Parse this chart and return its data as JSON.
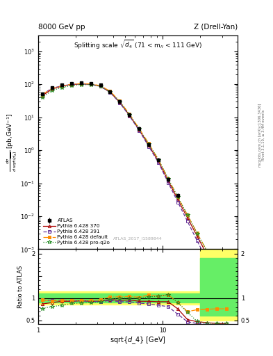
{
  "title_left": "8000 GeV pp",
  "title_right": "Z (Drell-Yan)",
  "plot_title": "Splitting scale $\\sqrt{d_4}$ (71 < m$_{ll}$ < 111 GeV)",
  "ylabel_main": "d$\\sigma$/dsqrt($d_4$) [pb,GeV$^{-1}$]",
  "ylabel_ratio": "Ratio to ATLAS",
  "xlabel": "sqrt{d_4} [GeV]",
  "watermark": "ATLAS_2017_I1589844",
  "right_label1": "Rivet 3.1.10, ≥ 3.4M events",
  "right_label2": "mcplots.cern.ch [arXiv:1306.3436]",
  "x_data": [
    1.08,
    1.29,
    1.55,
    1.85,
    2.21,
    2.64,
    3.16,
    3.78,
    4.52,
    5.41,
    6.47,
    7.74,
    9.26,
    11.07,
    13.24,
    15.83,
    18.94,
    22.65,
    27.08,
    32.4
  ],
  "atlas_y": [
    52.0,
    80.0,
    95.0,
    105.0,
    110.0,
    108.0,
    95.0,
    60.0,
    30.0,
    12.0,
    4.5,
    1.5,
    0.5,
    0.13,
    0.042,
    null,
    null,
    null,
    null,
    null
  ],
  "atlas_yerr_lo": [
    3.0,
    4.0,
    4.5,
    5.0,
    5.0,
    5.0,
    4.5,
    3.0,
    1.5,
    0.6,
    0.25,
    0.1,
    0.04,
    0.015,
    0.007,
    null,
    null,
    null,
    null,
    null
  ],
  "atlas_yerr_hi": [
    3.0,
    4.0,
    4.5,
    5.0,
    5.0,
    5.0,
    4.5,
    3.0,
    1.5,
    0.6,
    0.25,
    0.1,
    0.04,
    0.015,
    0.007,
    null,
    null,
    null,
    null,
    null
  ],
  "py370_y": [
    45.0,
    72.0,
    88.0,
    98.0,
    103.0,
    100.0,
    88.0,
    58.0,
    28.5,
    11.5,
    4.2,
    1.4,
    0.46,
    0.12,
    0.032,
    0.009,
    0.0025,
    0.0007,
    0.00018,
    5e-05
  ],
  "py391_y": [
    50.0,
    76.0,
    90.0,
    99.0,
    103.0,
    100.0,
    87.0,
    57.0,
    27.5,
    11.0,
    4.0,
    1.3,
    0.42,
    0.105,
    0.027,
    0.007,
    0.0018,
    0.00048,
    0.00012,
    3e-05
  ],
  "pydef_y": [
    50.0,
    75.0,
    90.0,
    100.0,
    105.0,
    103.0,
    91.0,
    62.0,
    31.0,
    12.5,
    4.6,
    1.6,
    0.52,
    0.14,
    0.038,
    0.011,
    0.0031,
    0.0009,
    0.00025,
    7e-05
  ],
  "pyproq2o_y": [
    40.0,
    65.0,
    80.0,
    92.0,
    98.0,
    97.0,
    87.0,
    59.0,
    30.0,
    12.0,
    4.5,
    1.55,
    0.52,
    0.14,
    0.038,
    0.011,
    0.003,
    0.0009,
    0.00025,
    7e-05
  ],
  "ratio_py370": [
    0.87,
    0.9,
    0.93,
    0.93,
    0.94,
    0.93,
    0.93,
    0.97,
    0.95,
    0.96,
    0.93,
    0.93,
    0.92,
    0.92,
    0.76,
    0.52,
    0.47,
    0.45,
    0.43,
    0.43
  ],
  "ratio_py391": [
    0.96,
    0.95,
    0.95,
    0.94,
    0.94,
    0.93,
    0.92,
    0.95,
    0.92,
    0.92,
    0.89,
    0.87,
    0.84,
    0.81,
    0.64,
    0.47,
    0.43,
    0.41,
    0.39,
    0.37
  ],
  "ratio_pydef": [
    0.96,
    0.94,
    0.95,
    0.95,
    0.95,
    0.95,
    0.96,
    1.03,
    1.03,
    1.04,
    1.02,
    1.07,
    1.04,
    1.08,
    0.9,
    0.7,
    0.74,
    0.75,
    0.76,
    0.76
  ],
  "ratio_pyproq2o": [
    0.77,
    0.81,
    0.84,
    0.88,
    0.89,
    0.9,
    0.92,
    0.98,
    1.0,
    1.0,
    1.0,
    1.03,
    1.04,
    1.08,
    0.9,
    0.68,
    0.48,
    0.44,
    0.43,
    0.43
  ],
  "color_atlas": "#000000",
  "color_py370": "#AA0000",
  "color_py391": "#663399",
  "color_pydef": "#FF8C00",
  "color_pyproq2o": "#228B22",
  "xlim": [
    1.0,
    40.0
  ],
  "ylim_main": [
    0.001,
    3000.0
  ],
  "ylim_ratio": [
    0.42,
    2.1
  ]
}
